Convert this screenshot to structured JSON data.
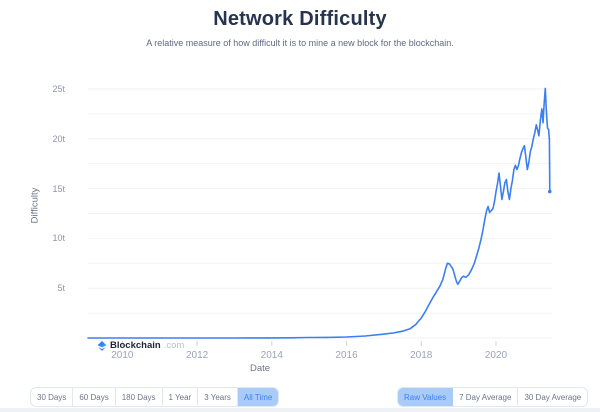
{
  "header": {
    "title": "Network Difficulty",
    "subtitle": "A relative measure of how difficult it is to mine a new block for the blockchain."
  },
  "watermark": {
    "brand": "Blockchain",
    "suffix": ".com"
  },
  "controls": {
    "period": {
      "options": [
        "30 Days",
        "60 Days",
        "180 Days",
        "1 Year",
        "3 Years",
        "All Time"
      ],
      "selected": "All Time"
    },
    "mode": {
      "options": [
        "Raw Values",
        "7 Day Average",
        "30 Day Average"
      ],
      "selected": "Raw Values"
    }
  },
  "colors": {
    "line": "#3b7ff0",
    "grid": "#f0f2f5",
    "tick_mark": "#cdd2db",
    "title_text": "#263450",
    "selected_button_bg": "#a9cbf8",
    "selected_button_text": "#3f80f2"
  },
  "chart_data": {
    "type": "line",
    "title": "Network Difficulty",
    "subtitle": "A relative measure of how difficult it is to mine a new block for the blockchain.",
    "xlabel": "Date",
    "ylabel": "Difficulty",
    "y_unit": "t = trillion",
    "xlim": [
      2009.08,
      2021.5
    ],
    "ylim": [
      0,
      26.4
    ],
    "grid": "horizontal only",
    "grid_step": 2.5,
    "legend": "none",
    "x_ticks": [
      {
        "v": 2010,
        "label": "2010"
      },
      {
        "v": 2012,
        "label": "2012"
      },
      {
        "v": 2014,
        "label": "2014"
      },
      {
        "v": 2016,
        "label": "2016"
      },
      {
        "v": 2018,
        "label": "2018"
      },
      {
        "v": 2020,
        "label": "2020"
      }
    ],
    "y_ticks": [
      {
        "v": 5,
        "label": "5t"
      },
      {
        "v": 10,
        "label": "10t"
      },
      {
        "v": 15,
        "label": "15t"
      },
      {
        "v": 20,
        "label": "20t"
      },
      {
        "v": 25,
        "label": "25t"
      }
    ],
    "series": [
      {
        "name": "Difficulty",
        "points": [
          [
            2009.08,
            0.002
          ],
          [
            2009.5,
            0.002
          ],
          [
            2010,
            0.002
          ],
          [
            2010.5,
            0.002
          ],
          [
            2011,
            0.002
          ],
          [
            2011.5,
            0.002
          ],
          [
            2012,
            0.002
          ],
          [
            2012.5,
            0.003
          ],
          [
            2013,
            0.004
          ],
          [
            2013.5,
            0.008
          ],
          [
            2014,
            0.014
          ],
          [
            2014.5,
            0.022
          ],
          [
            2015,
            0.047
          ],
          [
            2015.5,
            0.06
          ],
          [
            2016,
            0.105
          ],
          [
            2016.5,
            0.2
          ],
          [
            2017,
            0.39
          ],
          [
            2017.25,
            0.5
          ],
          [
            2017.5,
            0.68
          ],
          [
            2017.7,
            0.92
          ],
          [
            2017.85,
            1.35
          ],
          [
            2018,
            2.0
          ],
          [
            2018.1,
            2.6
          ],
          [
            2018.2,
            3.3
          ],
          [
            2018.3,
            4.0
          ],
          [
            2018.4,
            4.6
          ],
          [
            2018.5,
            5.2
          ],
          [
            2018.58,
            5.9
          ],
          [
            2018.65,
            6.9
          ],
          [
            2018.7,
            7.5
          ],
          [
            2018.75,
            7.45
          ],
          [
            2018.8,
            7.2
          ],
          [
            2018.85,
            6.9
          ],
          [
            2018.9,
            6.2
          ],
          [
            2018.95,
            5.6
          ],
          [
            2018.98,
            5.4
          ],
          [
            2019.03,
            5.7
          ],
          [
            2019.08,
            6.06
          ],
          [
            2019.13,
            6.2
          ],
          [
            2019.2,
            6.1
          ],
          [
            2019.27,
            6.35
          ],
          [
            2019.35,
            6.9
          ],
          [
            2019.42,
            7.5
          ],
          [
            2019.48,
            8.2
          ],
          [
            2019.54,
            9.0
          ],
          [
            2019.6,
            9.9
          ],
          [
            2019.65,
            10.8
          ],
          [
            2019.7,
            11.9
          ],
          [
            2019.75,
            12.8
          ],
          [
            2019.79,
            13.2
          ],
          [
            2019.83,
            12.6
          ],
          [
            2019.88,
            12.8
          ],
          [
            2019.92,
            13.0
          ],
          [
            2019.96,
            13.7
          ],
          [
            2020.0,
            14.7
          ],
          [
            2020.04,
            15.5
          ],
          [
            2020.08,
            16.55
          ],
          [
            2020.12,
            15.3
          ],
          [
            2020.16,
            13.9
          ],
          [
            2020.2,
            14.7
          ],
          [
            2020.24,
            15.6
          ],
          [
            2020.28,
            15.9
          ],
          [
            2020.32,
            14.7
          ],
          [
            2020.36,
            13.9
          ],
          [
            2020.4,
            15.0
          ],
          [
            2020.44,
            15.8
          ],
          [
            2020.48,
            16.9
          ],
          [
            2020.52,
            17.35
          ],
          [
            2020.56,
            16.9
          ],
          [
            2020.6,
            17.3
          ],
          [
            2020.64,
            18.0
          ],
          [
            2020.68,
            18.6
          ],
          [
            2020.72,
            19.0
          ],
          [
            2020.76,
            19.3
          ],
          [
            2020.8,
            18.2
          ],
          [
            2020.84,
            16.9
          ],
          [
            2020.88,
            17.6
          ],
          [
            2020.92,
            18.7
          ],
          [
            2020.96,
            19.2
          ],
          [
            2021.0,
            20.0
          ],
          [
            2021.04,
            20.6
          ],
          [
            2021.08,
            21.4
          ],
          [
            2021.12,
            20.8
          ],
          [
            2021.15,
            20.3
          ],
          [
            2021.19,
            21.9
          ],
          [
            2021.23,
            23.0
          ],
          [
            2021.26,
            21.6
          ],
          [
            2021.29,
            23.6
          ],
          [
            2021.32,
            25.05
          ],
          [
            2021.35,
            22.7
          ],
          [
            2021.38,
            21.1
          ],
          [
            2021.41,
            20.9
          ],
          [
            2021.43,
            19.9
          ],
          [
            2021.44,
            14.7
          ]
        ]
      }
    ]
  }
}
